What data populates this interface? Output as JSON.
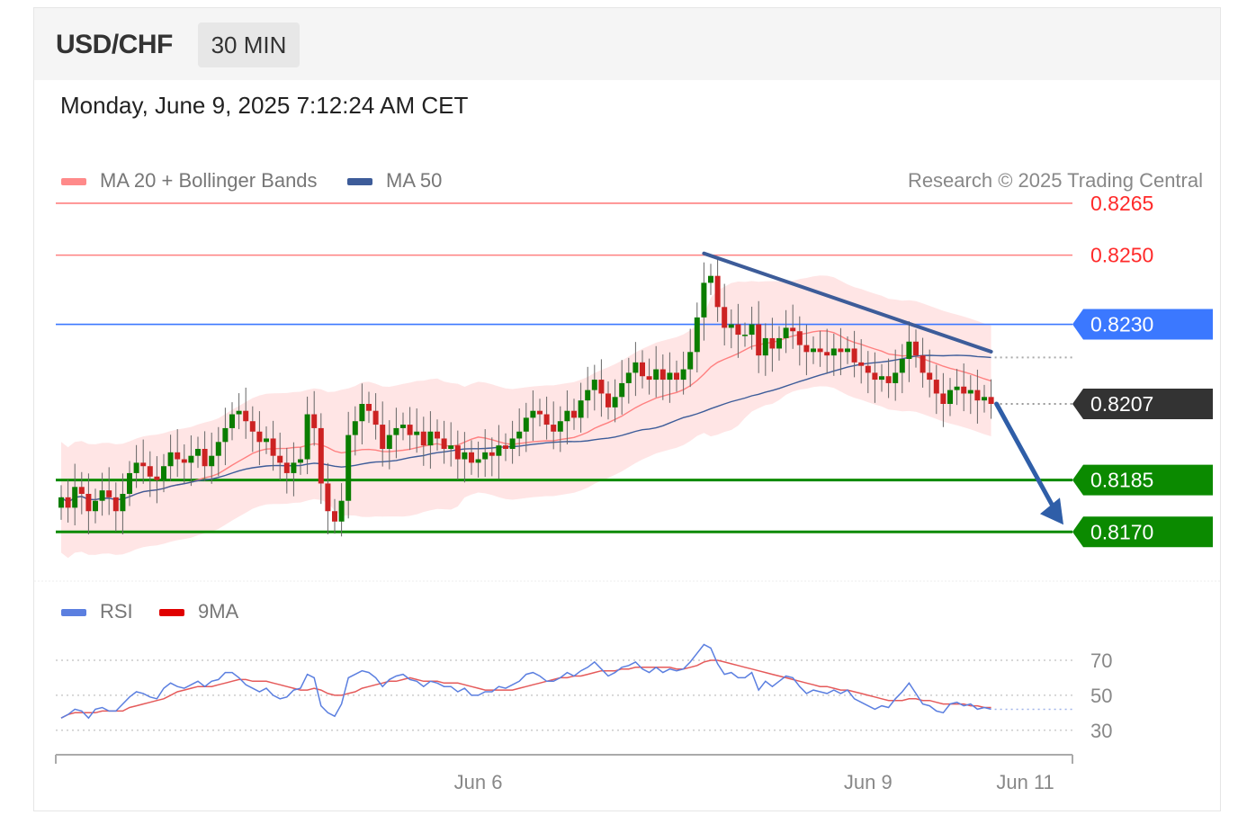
{
  "header": {
    "symbol": "USD/CHF",
    "timeframe": "30 MIN",
    "timestamp": "Monday, June 9, 2025 7:12:24 AM CET"
  },
  "legend": {
    "ma20": {
      "label": "MA 20 + Bollinger Bands",
      "color": "#ff8a8a"
    },
    "ma50": {
      "label": "MA 50",
      "color": "#3d5c99"
    },
    "rsi": {
      "label": "RSI",
      "color": "#5b7fe0"
    },
    "rsi_ma": {
      "label": "9MA",
      "color": "#e00000"
    }
  },
  "credit": "Research © 2025 Trading Central",
  "colors": {
    "resistance": "#ff8080",
    "pivot": "#3b78ff",
    "support": "#0b8a00",
    "last_price": "#333333",
    "band_fill": "#ffe5e5",
    "candle_up": "#0a7d00",
    "candle_down": "#cc2222",
    "forecast_arrow": "#2f5ea8"
  },
  "chart_data": [
    {
      "type": "candlestick",
      "title": "USD/CHF",
      "ylim": [
        0.8155,
        0.8272
      ],
      "x_tick_labels": [
        "Jun 6",
        "Jun 9",
        "Jun 11"
      ],
      "levels": [
        {
          "label": "0.8265",
          "value": 0.8265,
          "role": "resistance"
        },
        {
          "label": "0.8250",
          "value": 0.825,
          "role": "resistance"
        },
        {
          "label": "0.8230",
          "value": 0.823,
          "role": "pivot"
        },
        {
          "label": "0.8207",
          "value": 0.8207,
          "role": "last"
        },
        {
          "label": "0.8185",
          "value": 0.8185,
          "role": "support"
        },
        {
          "label": "0.8170",
          "value": 0.817,
          "role": "support"
        }
      ],
      "close": [
        0.818,
        0.8177,
        0.8183,
        0.8181,
        0.8176,
        0.8179,
        0.8182,
        0.818,
        0.8176,
        0.8181,
        0.8187,
        0.819,
        0.8189,
        0.8186,
        0.8185,
        0.8189,
        0.8193,
        0.8191,
        0.819,
        0.8192,
        0.8194,
        0.8189,
        0.8192,
        0.8196,
        0.82,
        0.8204,
        0.8205,
        0.8202,
        0.8199,
        0.8196,
        0.8197,
        0.8192,
        0.819,
        0.8187,
        0.819,
        0.8191,
        0.8204,
        0.82,
        0.8184,
        0.8176,
        0.8173,
        0.8179,
        0.8198,
        0.8202,
        0.8207,
        0.8205,
        0.8201,
        0.8194,
        0.8198,
        0.82,
        0.8201,
        0.8198,
        0.8199,
        0.8195,
        0.8199,
        0.8197,
        0.8194,
        0.8195,
        0.8191,
        0.8193,
        0.819,
        0.8191,
        0.8193,
        0.8192,
        0.8195,
        0.8194,
        0.8197,
        0.8199,
        0.8203,
        0.8205,
        0.8204,
        0.8201,
        0.8199,
        0.8202,
        0.8205,
        0.8203,
        0.8208,
        0.8211,
        0.8214,
        0.821,
        0.8206,
        0.8209,
        0.8213,
        0.8216,
        0.8219,
        0.8215,
        0.8214,
        0.8217,
        0.8214,
        0.8216,
        0.8214,
        0.8217,
        0.8222,
        0.8232,
        0.8242,
        0.8244,
        0.8235,
        0.8229,
        0.823,
        0.8227,
        0.8227,
        0.823,
        0.8221,
        0.8226,
        0.8223,
        0.8226,
        0.8229,
        0.8228,
        0.8224,
        0.8222,
        0.8223,
        0.8222,
        0.8221,
        0.8223,
        0.8222,
        0.8223,
        0.8219,
        0.8218,
        0.8216,
        0.8214,
        0.8215,
        0.8213,
        0.8216,
        0.822,
        0.8225,
        0.8221,
        0.8216,
        0.8214,
        0.821,
        0.8207,
        0.8211,
        0.8212,
        0.821,
        0.8211,
        0.8208,
        0.8209,
        0.8207
      ]
    },
    {
      "type": "line",
      "ylim": [
        16,
        88
      ],
      "y_ticks": [
        70,
        50,
        30
      ],
      "series": [
        {
          "name": "RSI",
          "values": [
            37,
            39,
            42,
            41,
            37,
            42,
            43,
            41,
            41,
            45,
            49,
            52,
            51,
            49,
            48,
            54,
            57,
            55,
            54,
            56,
            58,
            55,
            58,
            59,
            63,
            63,
            60,
            56,
            54,
            52,
            54,
            50,
            48,
            49,
            53,
            54,
            62,
            60,
            44,
            40,
            38,
            45,
            60,
            62,
            64,
            63,
            60,
            55,
            59,
            61,
            62,
            59,
            58,
            55,
            58,
            57,
            55,
            55,
            52,
            54,
            50,
            50,
            52,
            52,
            55,
            54,
            56,
            58,
            62,
            63,
            61,
            58,
            58,
            60,
            63,
            61,
            64,
            66,
            69,
            65,
            61,
            63,
            66,
            67,
            69,
            65,
            63,
            66,
            63,
            65,
            64,
            65,
            69,
            74,
            79,
            77,
            68,
            62,
            63,
            60,
            60,
            63,
            53,
            58,
            55,
            58,
            61,
            60,
            55,
            51,
            53,
            52,
            51,
            53,
            51,
            53,
            48,
            46,
            44,
            42,
            44,
            43,
            48,
            52,
            57,
            51,
            45,
            44,
            41,
            40,
            45,
            46,
            44,
            45,
            42,
            43,
            42
          ]
        },
        {
          "name": "9MA",
          "values": [
            37,
            39,
            40,
            40,
            40,
            40,
            41,
            41,
            41,
            41,
            43,
            44,
            45,
            46,
            47,
            48,
            50,
            52,
            53,
            54,
            55,
            55,
            55,
            56,
            57,
            58,
            59,
            59,
            58,
            58,
            58,
            57,
            56,
            55,
            54,
            53,
            53,
            54,
            53,
            51,
            50,
            50,
            51,
            52,
            54,
            55,
            56,
            57,
            58,
            58,
            59,
            60,
            59,
            58,
            58,
            58,
            57,
            57,
            57,
            56,
            55,
            54,
            53,
            53,
            53,
            53,
            53,
            54,
            55,
            56,
            57,
            58,
            59,
            60,
            60,
            61,
            61,
            62,
            63,
            64,
            64,
            64,
            65,
            65,
            66,
            66,
            66,
            66,
            66,
            66,
            65,
            65,
            66,
            67,
            69,
            70,
            70,
            69,
            68,
            67,
            66,
            65,
            64,
            63,
            62,
            61,
            60,
            59,
            58,
            57,
            56,
            55,
            55,
            54,
            53,
            53,
            52,
            51,
            50,
            49,
            48,
            47,
            47,
            47,
            48,
            48,
            47,
            47,
            46,
            45,
            45,
            45,
            45,
            44,
            44,
            43,
            43
          ]
        }
      ]
    }
  ]
}
